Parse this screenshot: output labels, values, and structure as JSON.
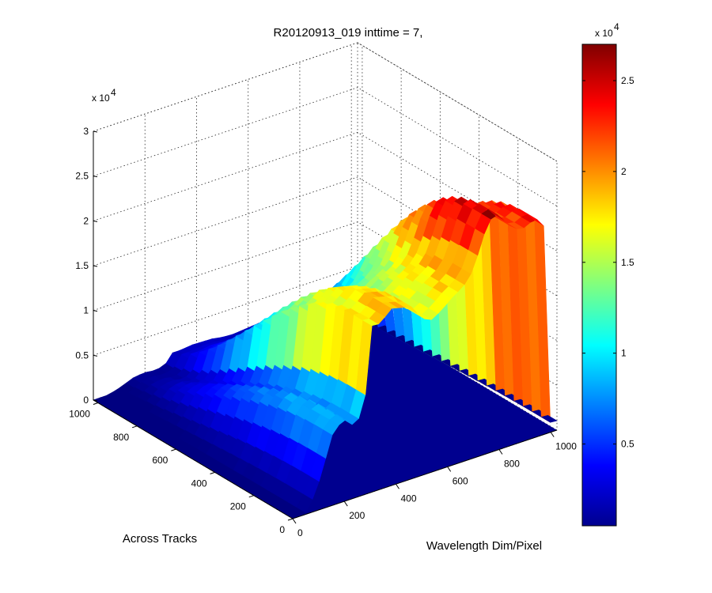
{
  "chart_data": {
    "type": "surface3d",
    "title": "R20120913_019 inttime = 7,",
    "xlabel": "Wavelength Dim/Pixel",
    "ylabel": "Across Tracks",
    "zlabel": "",
    "x_range": [
      0,
      1024
    ],
    "y_range": [
      0,
      1024
    ],
    "z_range": [
      0,
      30000
    ],
    "x_ticks": [
      "0",
      "200",
      "400",
      "600",
      "800",
      "1000"
    ],
    "y_ticks": [
      "0",
      "200",
      "400",
      "600",
      "800",
      "1000"
    ],
    "z_ticks": [
      "0",
      "0.5",
      "1",
      "1.5",
      "2",
      "2.5",
      "3"
    ],
    "z_exponent": "x 10",
    "z_exponent_power": "4",
    "grid": true,
    "colormap": "jet",
    "colorbar": {
      "position": "right",
      "range": [
        500,
        27000
      ],
      "ticks": [
        "0.5",
        "1",
        "1.5",
        "2",
        "2.5"
      ],
      "exponent": "x 10",
      "exponent_power": "4"
    },
    "spectrum_x": [
      0,
      40,
      80,
      120,
      140,
      160,
      200,
      240,
      280,
      290,
      300,
      340,
      380,
      420,
      460,
      500,
      540,
      580,
      620,
      660,
      700,
      740,
      760,
      780,
      800,
      830,
      860,
      900,
      940,
      980,
      1024
    ],
    "spectrum_peak_values": [
      200,
      600,
      1500,
      4500,
      7000,
      8300,
      9200,
      8000,
      9800,
      18000,
      18600,
      18500,
      19800,
      19500,
      19200,
      17500,
      17000,
      17800,
      18800,
      19500,
      21000,
      24500,
      25500,
      26800,
      26000,
      25000,
      24000,
      23800,
      24500,
      23000,
      21000
    ],
    "across_track_peak": 0.93
  }
}
